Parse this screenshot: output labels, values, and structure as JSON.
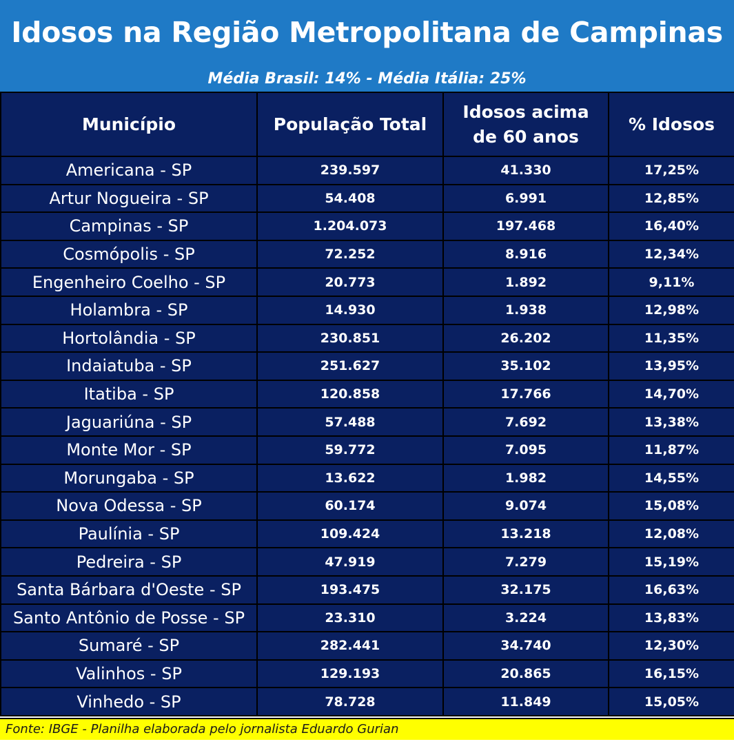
{
  "title": "Idosos na Região Metropolitana de Campinas",
  "subtitle": "Média Brasil: 14% - Média Itália: 25%",
  "colors": {
    "header_bg": "#1f7ac6",
    "table_bg": "#0a2061",
    "footer_bg": "#ffff00",
    "text": "#ffffff"
  },
  "table": {
    "headers": [
      "Município",
      "População Total",
      "Idosos acima de 60 anos",
      "% Idosos"
    ],
    "rows": [
      {
        "municipio": "Americana - SP",
        "populacao": "239.597",
        "idosos": "41.330",
        "pct": "17,25%"
      },
      {
        "municipio": "Artur Nogueira - SP",
        "populacao": "54.408",
        "idosos": "6.991",
        "pct": "12,85%"
      },
      {
        "municipio": "Campinas - SP",
        "populacao": "1.204.073",
        "idosos": "197.468",
        "pct": "16,40%"
      },
      {
        "municipio": "Cosmópolis - SP",
        "populacao": "72.252",
        "idosos": "8.916",
        "pct": "12,34%"
      },
      {
        "municipio": "Engenheiro Coelho - SP",
        "populacao": "20.773",
        "idosos": "1.892",
        "pct": "9,11%"
      },
      {
        "municipio": "Holambra - SP",
        "populacao": "14.930",
        "idosos": "1.938",
        "pct": "12,98%"
      },
      {
        "municipio": "Hortolândia - SP",
        "populacao": "230.851",
        "idosos": "26.202",
        "pct": "11,35%"
      },
      {
        "municipio": "Indaiatuba - SP",
        "populacao": "251.627",
        "idosos": "35.102",
        "pct": "13,95%"
      },
      {
        "municipio": "Itatiba - SP",
        "populacao": "120.858",
        "idosos": "17.766",
        "pct": "14,70%"
      },
      {
        "municipio": "Jaguariúna - SP",
        "populacao": "57.488",
        "idosos": "7.692",
        "pct": "13,38%"
      },
      {
        "municipio": "Monte Mor - SP",
        "populacao": "59.772",
        "idosos": "7.095",
        "pct": "11,87%"
      },
      {
        "municipio": "Morungaba - SP",
        "populacao": "13.622",
        "idosos": "1.982",
        "pct": "14,55%"
      },
      {
        "municipio": "Nova Odessa - SP",
        "populacao": "60.174",
        "idosos": "9.074",
        "pct": "15,08%"
      },
      {
        "municipio": "Paulínia - SP",
        "populacao": "109.424",
        "idosos": "13.218",
        "pct": "12,08%"
      },
      {
        "municipio": "Pedreira - SP",
        "populacao": "47.919",
        "idosos": "7.279",
        "pct": "15,19%"
      },
      {
        "municipio": "Santa Bárbara d'Oeste - SP",
        "populacao": "193.475",
        "idosos": "32.175",
        "pct": "16,63%"
      },
      {
        "municipio": "Santo Antônio de Posse - SP",
        "populacao": "23.310",
        "idosos": "3.224",
        "pct": "13,83%"
      },
      {
        "municipio": "Sumaré - SP",
        "populacao": "282.441",
        "idosos": "34.740",
        "pct": "12,30%"
      },
      {
        "municipio": "Valinhos - SP",
        "populacao": "129.193",
        "idosos": "20.865",
        "pct": "16,15%"
      },
      {
        "municipio": "Vinhedo - SP",
        "populacao": "78.728",
        "idosos": "11.849",
        "pct": "15,05%"
      }
    ]
  },
  "footer": "Fonte: IBGE - Planilha elaborada pelo jornalista Eduardo Gurian"
}
